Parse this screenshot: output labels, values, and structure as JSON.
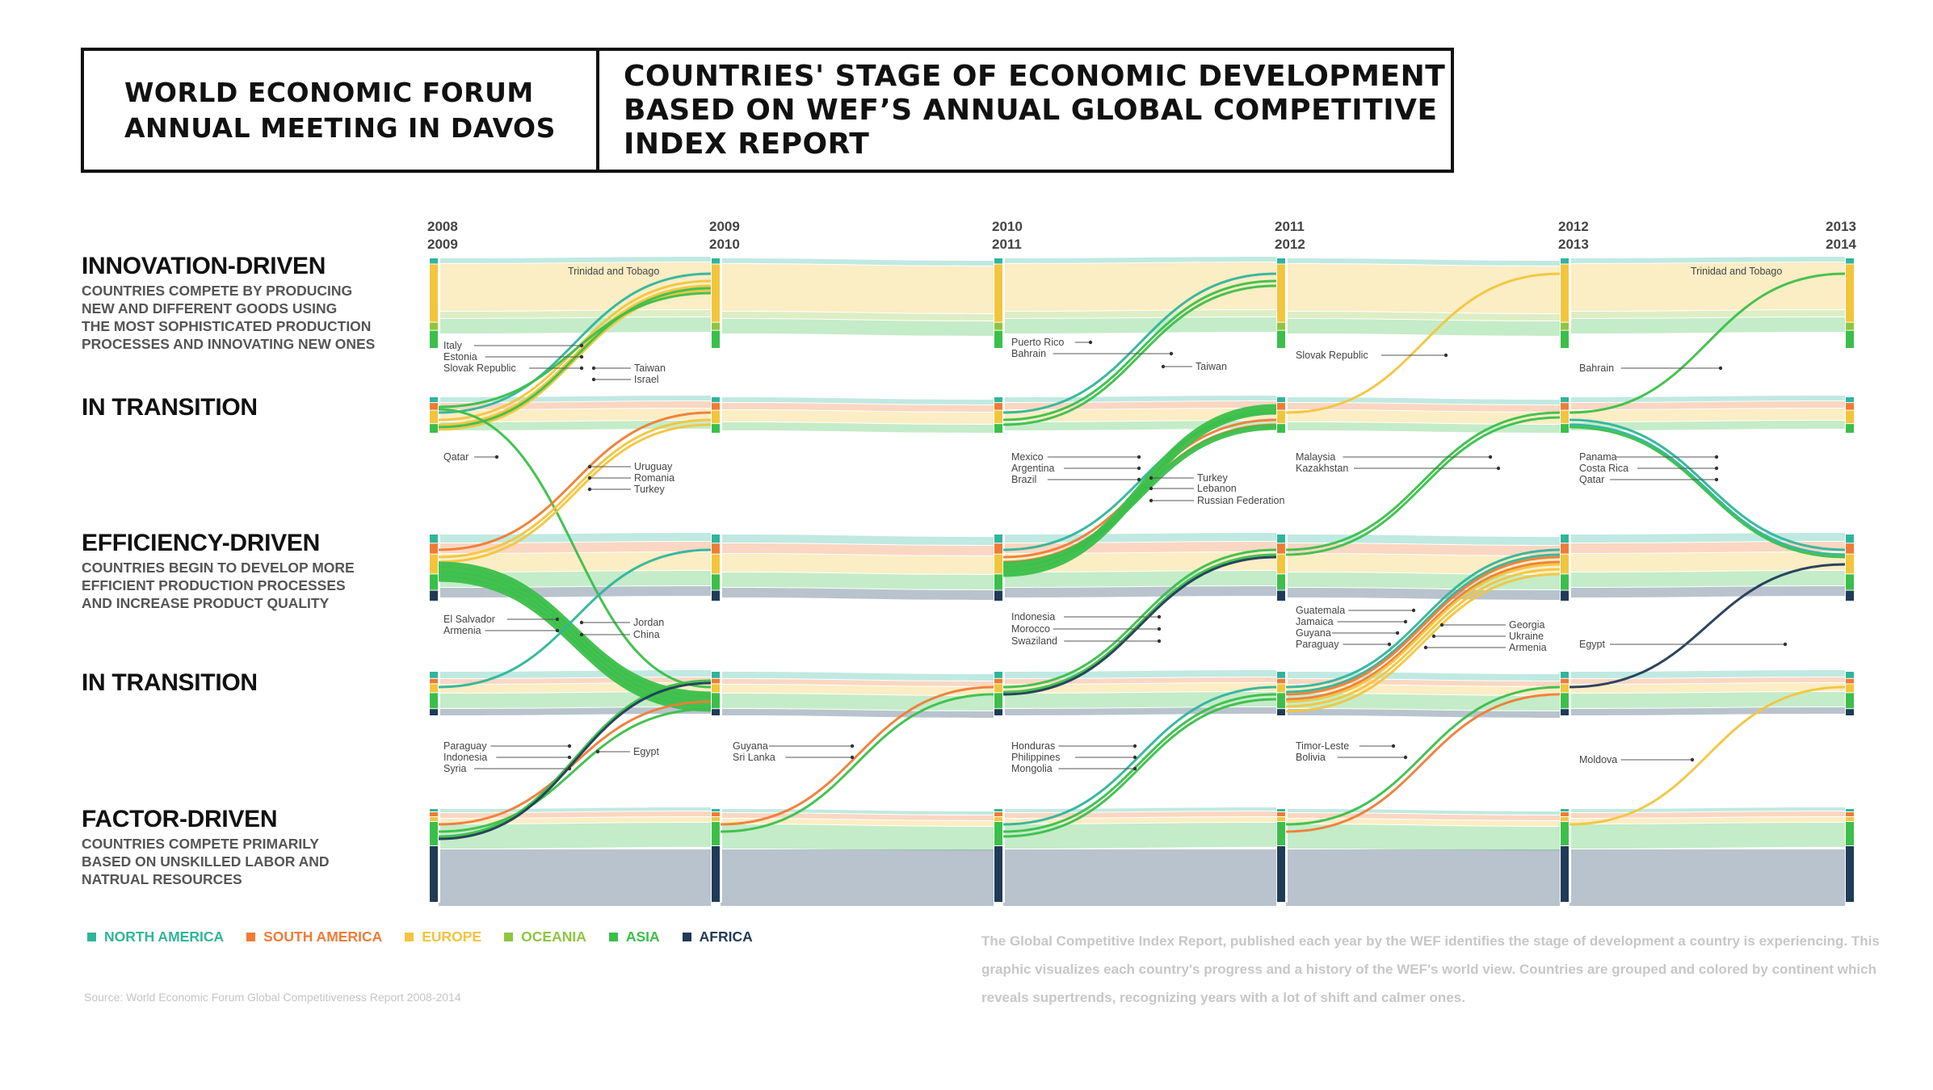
{
  "header": {
    "left_title": "WORLD ECONOMIC FORUM\nANNUAL MEETING IN DAVOS",
    "right_title": "COUNTRIES' STAGE OF ECONOMIC DEVELOPMENT\nBASED ON WEF’S ANNUAL GLOBAL COMPETITIVE\nINDEX REPORT"
  },
  "stages": [
    {
      "title": "INNOVATION-DRIVEN",
      "desc": "COUNTRIES COMPETE BY PRODUCING\nNEW AND DIFFERENT GOODS USING\nTHE MOST SOPHISTICATED PRODUCTION\nPROCESSES AND INNOVATING NEW ONES"
    },
    {
      "title": "IN TRANSITION",
      "desc": ""
    },
    {
      "title": "EFFICIENCY-DRIVEN",
      "desc": "COUNTRIES BEGIN TO DEVELOP MORE\nEFFICIENT PRODUCTION PROCESSES\nAND INCREASE PRODUCT QUALITY"
    },
    {
      "title": "IN TRANSITION",
      "desc": ""
    },
    {
      "title": "FACTOR-DRIVEN",
      "desc": "COUNTRIES COMPETE PRIMARILY\nBASED ON UNSKILLED LABOR AND\nNATRUAL RESOURCES"
    }
  ],
  "legend": [
    {
      "label": "NORTH AMERICA",
      "color": "#2fb59a"
    },
    {
      "label": "SOUTH AMERICA",
      "color": "#ef7c35"
    },
    {
      "label": "EUROPE",
      "color": "#f2c53d"
    },
    {
      "label": "OCEANIA",
      "color": "#8dc63f"
    },
    {
      "label": "ASIA",
      "color": "#3bbf4a"
    },
    {
      "label": "AFRICA",
      "color": "#1f3b57"
    }
  ],
  "note": "The Global Competitive Index Report, published each year by the WEF identifies the stage of development a country is experiencing. This graphic visualizes each country's progress and a history of the WEF's world view. Countries are grouped and colored by continent which reveals supertrends, recognizing years with a lot of shift and calmer ones.",
  "source": "Source: World Economic Forum Global Competitiveness Report 2008-2014",
  "chart_data": {
    "type": "sankey",
    "periods": [
      "2008\n2009",
      "2009\n2010",
      "2010\n2011",
      "2011\n2012",
      "2012\n2013",
      "2013\n2014"
    ],
    "stages": [
      "Innovation-driven",
      "In transition",
      "Efficiency-driven",
      "In transition",
      "Factor-driven"
    ],
    "continent_colors": {
      "NA": "#2fb59a",
      "SA": "#ef7c35",
      "EU": "#f2c53d",
      "OC": "#8dc63f",
      "AS": "#3bbf4a",
      "AF": "#1f3b57"
    },
    "flows": [
      {
        "from": [
          0,
          1
        ],
        "to": [
          1,
          0
        ],
        "continent": "NA",
        "labels": [
          "Trinidad and Tobago"
        ]
      },
      {
        "from": [
          0,
          1
        ],
        "to": [
          1,
          0
        ],
        "continent": "EU",
        "labels": [
          "Italy",
          "Estonia",
          "Slovak Republic"
        ]
      },
      {
        "from": [
          0,
          1
        ],
        "to": [
          1,
          0
        ],
        "continent": "AS",
        "labels": [
          "Taiwan",
          "Israel"
        ]
      },
      {
        "from": [
          0,
          1
        ],
        "to": [
          1,
          3
        ],
        "continent": "AS",
        "labels": [
          "Qatar"
        ]
      },
      {
        "from": [
          0,
          2
        ],
        "to": [
          1,
          1
        ],
        "continent": "SA",
        "labels": [
          "Uruguay"
        ]
      },
      {
        "from": [
          0,
          2
        ],
        "to": [
          1,
          1
        ],
        "continent": "EU",
        "labels": [
          "Romania",
          "Turkey"
        ]
      },
      {
        "from": [
          0,
          2
        ],
        "to": [
          1,
          3
        ],
        "continent": "AS",
        "labels": [
          "El Salvador",
          "Armenia",
          "Jordan",
          "China"
        ]
      },
      {
        "from": [
          0,
          3
        ],
        "to": [
          1,
          2
        ],
        "continent": "NA",
        "labels": [
          "El Salvador"
        ]
      },
      {
        "from": [
          0,
          4
        ],
        "to": [
          1,
          3
        ],
        "continent": "SA",
        "labels": [
          "Paraguay"
        ]
      },
      {
        "from": [
          0,
          4
        ],
        "to": [
          1,
          3
        ],
        "continent": "AS",
        "labels": [
          "Indonesia",
          "Syria"
        ]
      },
      {
        "from": [
          0,
          4
        ],
        "to": [
          1,
          3
        ],
        "continent": "AF",
        "labels": [
          "Egypt"
        ]
      },
      {
        "from": [
          1,
          4
        ],
        "to": [
          2,
          3
        ],
        "continent": "SA",
        "labels": [
          "Guyana"
        ]
      },
      {
        "from": [
          1,
          4
        ],
        "to": [
          2,
          3
        ],
        "continent": "AS",
        "labels": [
          "Sri Lanka"
        ]
      },
      {
        "from": [
          2,
          1
        ],
        "to": [
          3,
          0
        ],
        "continent": "NA",
        "labels": [
          "Puerto Rico"
        ]
      },
      {
        "from": [
          2,
          1
        ],
        "to": [
          3,
          0
        ],
        "continent": "AS",
        "labels": [
          "Bahrain",
          "Taiwan"
        ]
      },
      {
        "from": [
          2,
          2
        ],
        "to": [
          3,
          1
        ],
        "continent": "NA",
        "labels": [
          "Mexico"
        ]
      },
      {
        "from": [
          2,
          2
        ],
        "to": [
          3,
          1
        ],
        "continent": "SA",
        "labels": [
          "Argentina",
          "Brazil"
        ]
      },
      {
        "from": [
          2,
          2
        ],
        "to": [
          3,
          1
        ],
        "continent": "AS",
        "labels": [
          "Turkey",
          "Lebanon",
          "Russian Federation"
        ]
      },
      {
        "from": [
          2,
          3
        ],
        "to": [
          3,
          2
        ],
        "continent": "AS",
        "labels": [
          "Indonesia",
          "Morocco"
        ]
      },
      {
        "from": [
          2,
          3
        ],
        "to": [
          3,
          2
        ],
        "continent": "AF",
        "labels": [
          "Swaziland"
        ]
      },
      {
        "from": [
          2,
          4
        ],
        "to": [
          3,
          3
        ],
        "continent": "NA",
        "labels": [
          "Honduras"
        ]
      },
      {
        "from": [
          2,
          4
        ],
        "to": [
          3,
          3
        ],
        "continent": "AS",
        "labels": [
          "Philippines",
          "Mongolia"
        ]
      },
      {
        "from": [
          3,
          1
        ],
        "to": [
          4,
          0
        ],
        "continent": "EU",
        "labels": [
          "Slovak Republic"
        ]
      },
      {
        "from": [
          3,
          2
        ],
        "to": [
          4,
          1
        ],
        "continent": "AS",
        "labels": [
          "Malaysia",
          "Kazakhstan"
        ]
      },
      {
        "from": [
          3,
          3
        ],
        "to": [
          4,
          2
        ],
        "continent": "NA",
        "labels": [
          "Guatemala",
          "Jamaica"
        ]
      },
      {
        "from": [
          3,
          3
        ],
        "to": [
          4,
          2
        ],
        "continent": "SA",
        "labels": [
          "Guyana",
          "Paraguay"
        ]
      },
      {
        "from": [
          3,
          3
        ],
        "to": [
          4,
          2
        ],
        "continent": "EU",
        "labels": [
          "Georgia",
          "Ukraine",
          "Armenia"
        ]
      },
      {
        "from": [
          3,
          4
        ],
        "to": [
          4,
          3
        ],
        "continent": "AS",
        "labels": [
          "Timor-Leste"
        ]
      },
      {
        "from": [
          3,
          4
        ],
        "to": [
          4,
          3
        ],
        "continent": "SA",
        "labels": [
          "Bolivia"
        ]
      },
      {
        "from": [
          4,
          1
        ],
        "to": [
          5,
          0
        ],
        "continent": "AS",
        "labels": [
          "Bahrain"
        ]
      },
      {
        "from": [
          4,
          1
        ],
        "to": [
          5,
          2
        ],
        "continent": "NA",
        "labels": [
          "Panama",
          "Costa Rica"
        ]
      },
      {
        "from": [
          4,
          1
        ],
        "to": [
          5,
          2
        ],
        "continent": "AS",
        "labels": [
          "Qatar"
        ]
      },
      {
        "from": [
          4,
          3
        ],
        "to": [
          5,
          2
        ],
        "continent": "AF",
        "labels": [
          "Egypt"
        ]
      },
      {
        "from": [
          4,
          4
        ],
        "to": [
          5,
          3
        ],
        "continent": "EU",
        "labels": [
          "Moldova"
        ]
      }
    ]
  },
  "annotations": [
    {
      "text": "Trinidad and Tobago"
    },
    {
      "text": "Italy"
    },
    {
      "text": "Estonia"
    },
    {
      "text": "Slovak Republic"
    },
    {
      "text": "Taiwan"
    },
    {
      "text": "Israel"
    },
    {
      "text": "Qatar"
    },
    {
      "text": "Uruguay"
    },
    {
      "text": "Romania"
    },
    {
      "text": "Turkey"
    },
    {
      "text": "El Salvador"
    },
    {
      "text": "Armenia"
    },
    {
      "text": "Jordan"
    },
    {
      "text": "China"
    },
    {
      "text": "Paraguay"
    },
    {
      "text": "Indonesia"
    },
    {
      "text": "Syria"
    },
    {
      "text": "Egypt"
    },
    {
      "text": "Guyana"
    },
    {
      "text": "Sri Lanka"
    },
    {
      "text": "Puerto Rico"
    },
    {
      "text": "Bahrain"
    },
    {
      "text": "Taiwan"
    },
    {
      "text": "Mexico"
    },
    {
      "text": "Argentina"
    },
    {
      "text": "Brazil"
    },
    {
      "text": "Turkey"
    },
    {
      "text": "Lebanon"
    },
    {
      "text": "Russian Federation"
    },
    {
      "text": "Indonesia"
    },
    {
      "text": "Morocco"
    },
    {
      "text": "Swaziland"
    },
    {
      "text": "Honduras"
    },
    {
      "text": "Philippines"
    },
    {
      "text": "Mongolia"
    },
    {
      "text": "Slovak Republic"
    },
    {
      "text": "Malaysia"
    },
    {
      "text": "Kazakhstan"
    },
    {
      "text": "Guatemala"
    },
    {
      "text": "Jamaica"
    },
    {
      "text": "Guyana"
    },
    {
      "text": "Paraguay"
    },
    {
      "text": "Georgia"
    },
    {
      "text": "Ukraine"
    },
    {
      "text": "Armenia"
    },
    {
      "text": "Timor-Leste"
    },
    {
      "text": "Bolivia"
    },
    {
      "text": "Trinidad and Tobago"
    },
    {
      "text": "Bahrain"
    },
    {
      "text": "Panama"
    },
    {
      "text": "Costa Rica"
    },
    {
      "text": "Qatar"
    },
    {
      "text": "Egypt"
    },
    {
      "text": "Moldova"
    }
  ]
}
